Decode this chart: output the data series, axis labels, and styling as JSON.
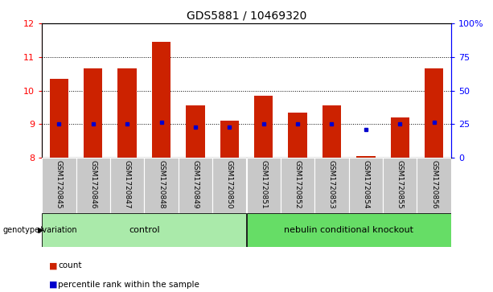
{
  "title": "GDS5881 / 10469320",
  "samples": [
    "GSM1720845",
    "GSM1720846",
    "GSM1720847",
    "GSM1720848",
    "GSM1720849",
    "GSM1720850",
    "GSM1720851",
    "GSM1720852",
    "GSM1720853",
    "GSM1720854",
    "GSM1720855",
    "GSM1720856"
  ],
  "bar_heights": [
    10.35,
    10.65,
    10.65,
    11.45,
    9.55,
    9.1,
    9.85,
    9.35,
    9.55,
    8.05,
    9.2,
    10.65
  ],
  "blue_dots": [
    9.0,
    9.0,
    9.0,
    9.05,
    8.9,
    8.9,
    9.0,
    9.0,
    9.0,
    8.85,
    9.0,
    9.05
  ],
  "bar_bottom": 8.0,
  "ylim": [
    8.0,
    12.0
  ],
  "yticks_left": [
    8,
    9,
    10,
    11,
    12
  ],
  "yticks_right": [
    0,
    25,
    50,
    75,
    100
  ],
  "bar_color": "#cc2200",
  "dot_color": "#0000cc",
  "background_color": "#ffffff",
  "plot_bg_color": "#ffffff",
  "tick_label_area_color": "#c8c8c8",
  "control_group_color": "#aaeaaa",
  "ko_group_color": "#66dd66",
  "control_indices": [
    0,
    1,
    2,
    3,
    4,
    5
  ],
  "ko_indices": [
    6,
    7,
    8,
    9,
    10,
    11
  ],
  "control_label": "control",
  "ko_label": "nebulin conditional knockout",
  "genotype_label": "genotype/variation",
  "legend_count_label": "count",
  "legend_percentile_label": "percentile rank within the sample",
  "grid_yticks": [
    9,
    10,
    11
  ],
  "title_fontsize": 10,
  "tick_fontsize": 8,
  "bar_width": 0.55
}
